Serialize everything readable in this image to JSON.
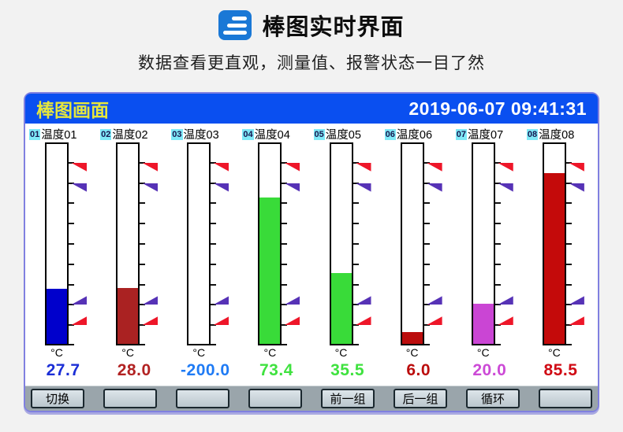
{
  "page": {
    "icon": "three-bars-icon",
    "title": "棒图实时界面",
    "subtitle": "数据查看更直观，测量值、报警状态一目了然"
  },
  "screen": {
    "title": "棒图画面",
    "datetime": "2019-06-07 09:41:31",
    "colors": {
      "titlebar_bg": "#0a4ff0",
      "title_text": "#e6e73c",
      "datetime_text": "#ffffff",
      "panel_border": "#8080e0",
      "badge_bg": "#7fe9f7",
      "alarm_high": "#ee1629",
      "alarm_low": "#5632b6",
      "softkey_bar_bg": "#9aa5ab"
    }
  },
  "chart_data": {
    "type": "bar",
    "title": "棒图画面",
    "orientation": "vertical-gauges",
    "ylim": [
      0,
      100
    ],
    "tick_interval_pct": 10,
    "grid": false,
    "alarm_marks_pct_from_top": {
      "high_high": 10,
      "high": 20,
      "low": 80,
      "low_low": 90
    },
    "channels": [
      {
        "no": "01",
        "name": "温度01",
        "unit": "°C",
        "value": 27.7,
        "display": "27.7",
        "bar_color": "#0000cc",
        "value_color": "#1b2ed6"
      },
      {
        "no": "02",
        "name": "温度02",
        "unit": "°C",
        "value": 28.0,
        "display": "28.0",
        "bar_color": "#aa2222",
        "value_color": "#b22222"
      },
      {
        "no": "03",
        "name": "温度03",
        "unit": "°C",
        "value": -200.0,
        "display": "-200.0",
        "bar_color": "#1f7bf5",
        "value_color": "#1f7bf5"
      },
      {
        "no": "04",
        "name": "温度04",
        "unit": "°C",
        "value": 73.4,
        "display": "73.4",
        "bar_color": "#39db39",
        "value_color": "#3fe23f"
      },
      {
        "no": "05",
        "name": "温度05",
        "unit": "°C",
        "value": 35.5,
        "display": "35.5",
        "bar_color": "#39db39",
        "value_color": "#3fe23f"
      },
      {
        "no": "06",
        "name": "温度06",
        "unit": "°C",
        "value": 6.0,
        "display": "6.0",
        "bar_color": "#bb0d0d",
        "value_color": "#bb0d0d"
      },
      {
        "no": "07",
        "name": "温度07",
        "unit": "°C",
        "value": 20.0,
        "display": "20.0",
        "bar_color": "#ca45d4",
        "value_color": "#cc4ad6"
      },
      {
        "no": "08",
        "name": "温度08",
        "unit": "°C",
        "value": 85.5,
        "display": "85.5",
        "bar_color": "#c40a0a",
        "value_color": "#d00a14"
      }
    ]
  },
  "softkeys": [
    {
      "label": "切换"
    },
    {
      "label": ""
    },
    {
      "label": ""
    },
    {
      "label": ""
    },
    {
      "label": "前一组"
    },
    {
      "label": "后一组"
    },
    {
      "label": "循环"
    },
    {
      "label": ""
    }
  ]
}
